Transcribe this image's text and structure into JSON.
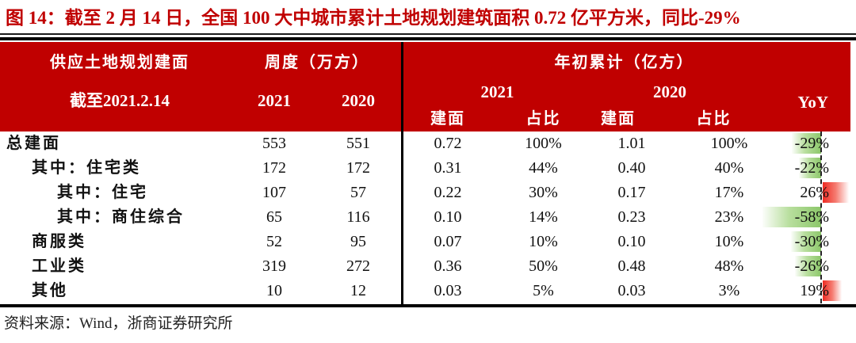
{
  "title": "图  14：截至 2 月 14 日，全国 100 大中城市累计土地规划建筑面积 0.72 亿平方米，同比-29%",
  "colors": {
    "accent_red": "#c00000",
    "header_text": "#ffffff",
    "databar_green": "#8cc76a",
    "databar_red": "#ed2a22"
  },
  "table": {
    "header": {
      "group_label": "供应土地规划建面",
      "asof": "截至2021.2.14",
      "weekly_group": "周度（万方）",
      "weekly_years": [
        "2021",
        "2020"
      ],
      "ytd_group": "年初累计（亿方）",
      "ytd_years": [
        "2021",
        "2020"
      ],
      "sub_cols": [
        "建面",
        "占比",
        "建面",
        "占比"
      ],
      "yoy_label": "YoY"
    },
    "rows": [
      {
        "label": "总建面",
        "weekly_2021": "553",
        "weekly_2020": "551",
        "ytd2021_area": "0.72",
        "ytd2021_share": "100%",
        "ytd2020_area": "1.01",
        "ytd2020_share": "100%",
        "yoy": "-29%"
      },
      {
        "label": "其中：住宅类",
        "weekly_2021": "172",
        "weekly_2020": "172",
        "ytd2021_area": "0.31",
        "ytd2021_share": "44%",
        "ytd2020_area": "0.40",
        "ytd2020_share": "40%",
        "yoy": "-22%"
      },
      {
        "label": "其中：住宅",
        "weekly_2021": "107",
        "weekly_2020": "57",
        "ytd2021_area": "0.22",
        "ytd2021_share": "30%",
        "ytd2020_area": "0.17",
        "ytd2020_share": "17%",
        "yoy": "26%"
      },
      {
        "label": "其中：商住综合",
        "weekly_2021": "65",
        "weekly_2020": "116",
        "ytd2021_area": "0.10",
        "ytd2021_share": "14%",
        "ytd2020_area": "0.23",
        "ytd2020_share": "23%",
        "yoy": "-58%"
      },
      {
        "label": "商服类",
        "weekly_2021": "52",
        "weekly_2020": "95",
        "ytd2021_area": "0.07",
        "ytd2021_share": "10%",
        "ytd2020_area": "0.10",
        "ytd2020_share": "10%",
        "yoy": "-30%"
      },
      {
        "label": "工业类",
        "weekly_2021": "319",
        "weekly_2020": "272",
        "ytd2021_area": "0.36",
        "ytd2021_share": "50%",
        "ytd2020_area": "0.48",
        "ytd2020_share": "48%",
        "yoy": "-26%"
      },
      {
        "label": "其他",
        "weekly_2021": "10",
        "weekly_2020": "12",
        "ytd2021_area": "0.03",
        "ytd2021_share": "5%",
        "ytd2020_area": "0.03",
        "ytd2020_share": "3%",
        "yoy": "19%"
      }
    ]
  },
  "footer": {
    "source": "资料来源：Wind，浙商证券研究所"
  }
}
